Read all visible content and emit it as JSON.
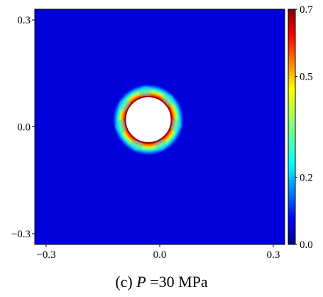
{
  "chart_data": {
    "type": "heatmap",
    "title": "",
    "xlabel": "",
    "ylabel": "",
    "xlim": [
      -0.33,
      0.33
    ],
    "ylim": [
      -0.33,
      0.33
    ],
    "x_ticks": [
      {
        "value": -0.3,
        "label": "−0.3"
      },
      {
        "value": 0.0,
        "label": "0.0"
      },
      {
        "value": 0.3,
        "label": "0.3"
      }
    ],
    "y_ticks": [
      {
        "value": 0.3,
        "label": "0.3"
      },
      {
        "value": 0.0,
        "label": "0.0"
      },
      {
        "value": -0.3,
        "label": "−0.3"
      }
    ],
    "colorbar": {
      "colormap": "jet",
      "range": [
        0.0,
        0.7
      ],
      "ticks": [
        {
          "value": 0.7,
          "label": "0.7"
        },
        {
          "value": 0.5,
          "label": "0.5"
        },
        {
          "value": 0.2,
          "label": "0.2"
        },
        {
          "value": 0.0,
          "label": "0.0"
        }
      ]
    },
    "field": {
      "background_value": 0.0,
      "hole_center": [
        -0.03,
        0.02
      ],
      "hole_radius": 0.061,
      "peak_value": 0.7,
      "damage_zone_outer_radius": 0.095
    },
    "grid": false,
    "legend": "colorbar-right"
  },
  "caption": {
    "prefix": "(c) ",
    "variable": "P",
    "suffix": " =30 MPa"
  }
}
